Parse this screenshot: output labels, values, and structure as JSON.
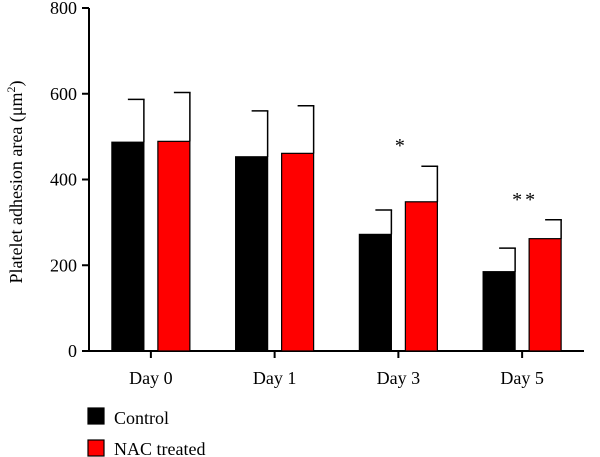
{
  "chart_data": {
    "type": "bar",
    "ylabel_main": "Platelet adhesion area (μm",
    "ylabel_sup": "2",
    "ylabel_close": ")",
    "ylim": [
      0,
      800
    ],
    "yticks": [
      0,
      200,
      400,
      600,
      800
    ],
    "categories": [
      "Day 0",
      "Day 1",
      "Day 3",
      "Day 5"
    ],
    "series": [
      {
        "name": "Control",
        "color": "#000000",
        "values": [
          487,
          453,
          272,
          185
        ],
        "errors": [
          100,
          107,
          57,
          55
        ]
      },
      {
        "name": "NAC treated",
        "color": "#ff0000",
        "values": [
          489,
          461,
          348,
          262
        ],
        "errors": [
          114,
          111,
          83,
          44
        ]
      }
    ],
    "annotations": [
      "",
      "",
      "*",
      "**"
    ],
    "legend_position": "bottom-left"
  }
}
